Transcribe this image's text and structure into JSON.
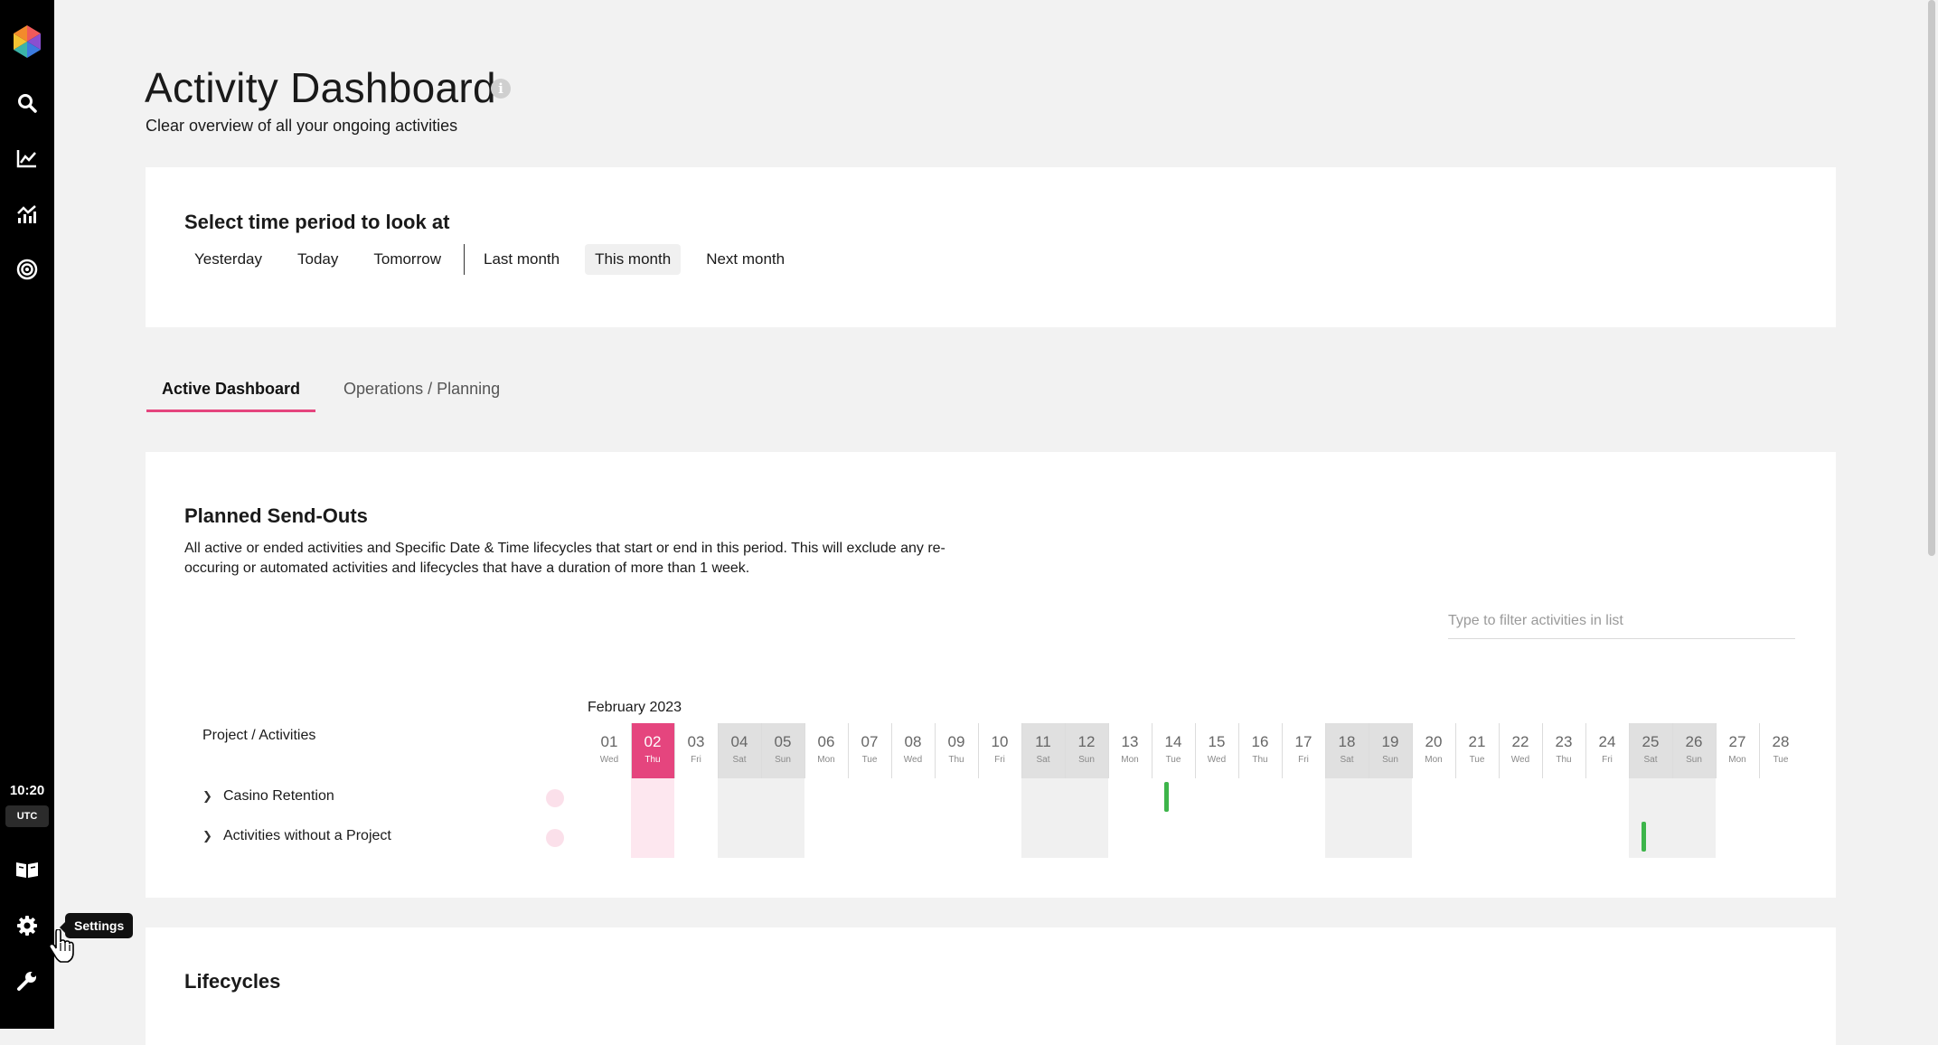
{
  "header": {
    "title": "Activity Dashboard",
    "subtitle": "Clear overview of all your ongoing activities",
    "info_icon": "i"
  },
  "sidebar": {
    "clock_time": "10:20",
    "clock_zone": "UTC",
    "tooltip": "Settings",
    "icons": [
      "logo-icon",
      "search-icon",
      "line-chart-icon",
      "analytics-icon",
      "target-icon",
      "book-icon",
      "gear-icon",
      "wrench-icon"
    ]
  },
  "time_period": {
    "title": "Select time period to look at",
    "options": [
      "Yesterday",
      "Today",
      "Tomorrow",
      "Last month",
      "This month",
      "Next month"
    ],
    "selected": "This month"
  },
  "tabs": [
    {
      "label": "Active Dashboard",
      "active": true
    },
    {
      "label": "Operations / Planning",
      "active": false
    }
  ],
  "planned": {
    "title": "Planned Send-Outs",
    "description": "All active or ended activities and Specific Date & Time lifecycles that start or end in this period. This will exclude any re-occuring or automated activities and lifecycles that have a duration of more than 1 week.",
    "filter_placeholder": "Type to filter activities in list",
    "month": "February 2023",
    "column_header": "Project / Activities",
    "today": "02",
    "days": [
      {
        "n": "01",
        "d": "Wed"
      },
      {
        "n": "02",
        "d": "Thu"
      },
      {
        "n": "03",
        "d": "Fri"
      },
      {
        "n": "04",
        "d": "Sat"
      },
      {
        "n": "05",
        "d": "Sun"
      },
      {
        "n": "06",
        "d": "Mon"
      },
      {
        "n": "07",
        "d": "Tue"
      },
      {
        "n": "08",
        "d": "Wed"
      },
      {
        "n": "09",
        "d": "Thu"
      },
      {
        "n": "10",
        "d": "Fri"
      },
      {
        "n": "11",
        "d": "Sat"
      },
      {
        "n": "12",
        "d": "Sun"
      },
      {
        "n": "13",
        "d": "Mon"
      },
      {
        "n": "14",
        "d": "Tue"
      },
      {
        "n": "15",
        "d": "Wed"
      },
      {
        "n": "16",
        "d": "Thu"
      },
      {
        "n": "17",
        "d": "Fri"
      },
      {
        "n": "18",
        "d": "Sat"
      },
      {
        "n": "19",
        "d": "Sun"
      },
      {
        "n": "20",
        "d": "Mon"
      },
      {
        "n": "21",
        "d": "Tue"
      },
      {
        "n": "22",
        "d": "Wed"
      },
      {
        "n": "23",
        "d": "Thu"
      },
      {
        "n": "24",
        "d": "Fri"
      },
      {
        "n": "25",
        "d": "Sat"
      },
      {
        "n": "26",
        "d": "Sun"
      },
      {
        "n": "27",
        "d": "Mon"
      },
      {
        "n": "28",
        "d": "Tue"
      }
    ],
    "rows": [
      {
        "label": "Casino Retention",
        "activity_days": [
          "14"
        ]
      },
      {
        "label": "Activities without a Project",
        "activity_days": [
          "25"
        ]
      }
    ]
  },
  "lifecycles": {
    "title": "Lifecycles"
  },
  "colors": {
    "accent": "#e5457e",
    "activity": "#3db54a",
    "sidebar": "#000000"
  }
}
